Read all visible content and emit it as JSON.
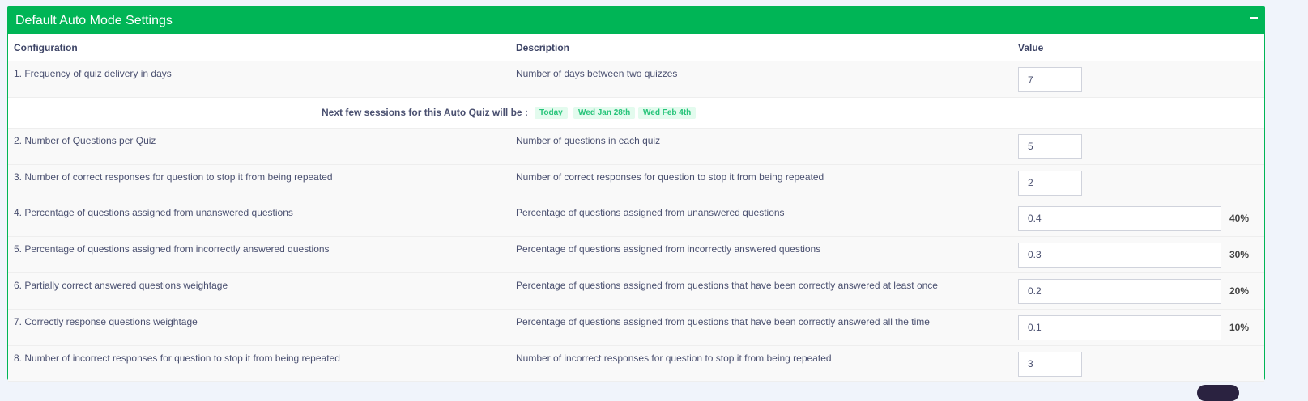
{
  "panel": {
    "title": "Default Auto Mode Settings",
    "collapse_icon": "minus-icon",
    "accent": "#00b556"
  },
  "table": {
    "headers": [
      "Configuration",
      "Description",
      "Value"
    ],
    "rows": [
      {
        "config": "1. Frequency of quiz delivery in days",
        "desc": "Number of days between two quizzes",
        "value": "7",
        "pct": ""
      },
      {
        "config": "2. Number of Questions per Quiz",
        "desc": "Number of questions in each quiz",
        "value": "5",
        "pct": ""
      },
      {
        "config": "3. Number of correct responses for question to stop it from being repeated",
        "desc": "Number of correct responses for question to stop it from being repeated",
        "value": "2",
        "pct": ""
      },
      {
        "config": "4. Percentage of questions assigned from unanswered questions",
        "desc": "Percentage of questions assigned from unanswered questions",
        "value": "0.4",
        "pct": "40%"
      },
      {
        "config": "5. Percentage of questions assigned from incorrectly answered questions",
        "desc": "Percentage of questions assigned from incorrectly answered questions",
        "value": "0.3",
        "pct": "30%"
      },
      {
        "config": "6. Partially correct answered questions weightage",
        "desc": "Percentage of questions assigned from questions that have been correctly answered at least once",
        "value": "0.2",
        "pct": "20%"
      },
      {
        "config": "7. Correctly response questions weightage",
        "desc": "Percentage of questions assigned from questions that have been correctly answered all the time",
        "value": "0.1",
        "pct": "10%"
      },
      {
        "config": "8. Number of incorrect responses for question to stop it from being repeated",
        "desc": "Number of incorrect responses for question to stop it from being repeated",
        "value": "3",
        "pct": ""
      }
    ]
  },
  "sessions": {
    "label": "Next few sessions for this Auto Quiz will be :",
    "dates": [
      "Today",
      "Wed Jan 28th",
      "Wed Feb 4th"
    ]
  }
}
